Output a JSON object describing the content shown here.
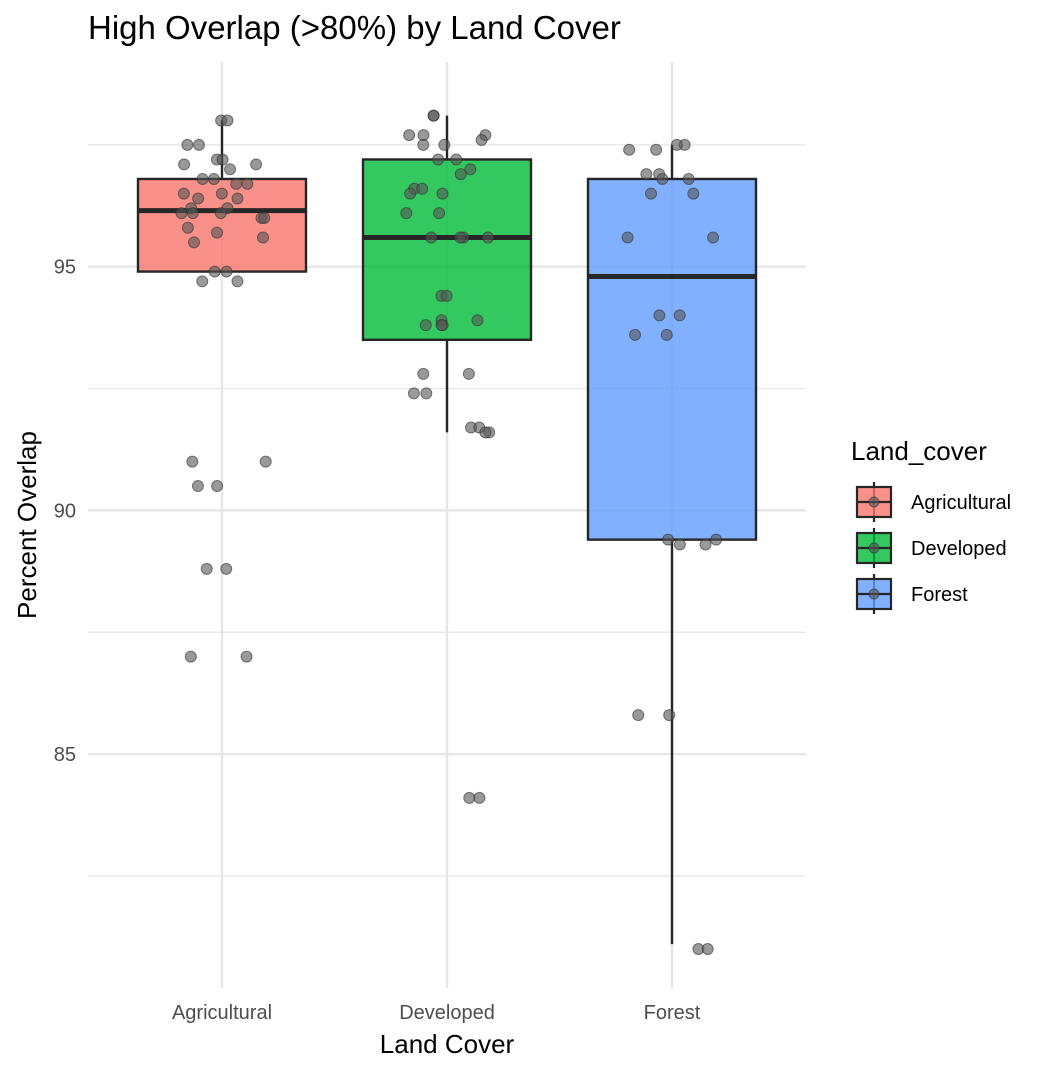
{
  "chart_data": {
    "type": "box",
    "title": "High Overlap (>80%) by Land Cover",
    "xlabel": "Land Cover",
    "ylabel": "Percent Overlap",
    "ylim": [
      80.2,
      99.2
    ],
    "y_ticks": [
      85,
      90,
      95
    ],
    "grid": true,
    "legend": {
      "title": "Land_cover",
      "position": "right",
      "entries": [
        "Agricultural",
        "Developed",
        "Forest"
      ]
    },
    "categories": [
      "Agricultural",
      "Developed",
      "Forest"
    ],
    "colors": {
      "Agricultural": "#F8766D",
      "Developed": "#00BA38",
      "Forest": "#619CFF",
      "box_outline": "#262626",
      "point": "#555555",
      "grid": "#e6e6e6"
    },
    "boxes": [
      {
        "category": "Agricultural",
        "whisker_low": 94.9,
        "q1": 94.9,
        "median": 96.15,
        "q3": 96.8,
        "whisker_high": 98.0
      },
      {
        "category": "Developed",
        "whisker_low": 91.6,
        "q1": 93.5,
        "median": 95.6,
        "q3": 97.2,
        "whisker_high": 98.1
      },
      {
        "category": "Forest",
        "whisker_low": 81.1,
        "q1": 89.4,
        "median": 94.8,
        "q3": 96.8,
        "whisker_high": 97.5
      }
    ],
    "points": [
      {
        "category": "Agricultural",
        "values": [
          98.0,
          98.0,
          97.5,
          97.5,
          97.2,
          97.2,
          97.1,
          97.1,
          97.0,
          96.8,
          96.8,
          96.7,
          96.7,
          96.5,
          96.5,
          96.4,
          96.4,
          96.2,
          96.2,
          96.1,
          96.1,
          96.1,
          96.0,
          96.0,
          95.8,
          95.7,
          95.6,
          95.5,
          94.9,
          94.9,
          94.7,
          94.7,
          91.0,
          91.0,
          90.5,
          90.5,
          88.8,
          88.8,
          87.0,
          87.0
        ]
      },
      {
        "category": "Developed",
        "values": [
          98.1,
          98.1,
          97.7,
          97.7,
          97.7,
          97.6,
          97.5,
          97.5,
          97.2,
          97.2,
          97.0,
          96.9,
          96.6,
          96.6,
          96.5,
          96.5,
          96.1,
          96.1,
          95.6,
          95.6,
          95.6,
          95.6,
          94.4,
          94.4,
          93.9,
          93.9,
          93.8,
          93.8,
          93.8,
          92.8,
          92.8,
          92.4,
          92.4,
          91.7,
          91.7,
          91.6,
          91.6,
          84.1,
          84.1
        ]
      },
      {
        "category": "Forest",
        "values": [
          97.5,
          97.5,
          97.4,
          97.4,
          96.9,
          96.9,
          96.8,
          96.8,
          96.5,
          96.5,
          95.6,
          95.6,
          94.0,
          94.0,
          93.6,
          93.6,
          89.4,
          89.4,
          89.3,
          89.3,
          85.8,
          85.8,
          81.0,
          81.0
        ]
      }
    ]
  }
}
